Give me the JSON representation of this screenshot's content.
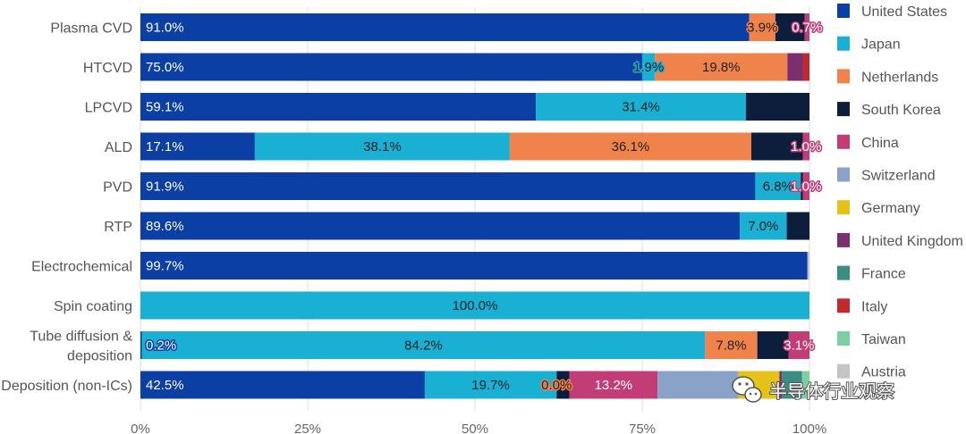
{
  "chart_data": {
    "type": "bar",
    "orientation": "horizontal",
    "stacked": true,
    "categories": [
      "Plasma CVD",
      "HTCVD",
      "LPCVD",
      "ALD",
      "PVD",
      "RTP",
      "Electrochemical",
      "Spin coating",
      "Tube diffusion & deposition",
      "Deposition (non-ICs)"
    ],
    "category_lines": [
      [
        "Plasma CVD"
      ],
      [
        "HTCVD"
      ],
      [
        "LPCVD"
      ],
      [
        "ALD"
      ],
      [
        "PVD"
      ],
      [
        "RTP"
      ],
      [
        "Electrochemical"
      ],
      [
        "Spin coating"
      ],
      [
        "Tube diffusion &",
        "deposition"
      ],
      [
        "Deposition (non-ICs)"
      ]
    ],
    "series": [
      {
        "name": "United States",
        "color": "#0b3fa3",
        "values": [
          91.0,
          75.0,
          59.1,
          17.1,
          91.9,
          89.6,
          99.7,
          0.0,
          0.2,
          42.5
        ]
      },
      {
        "name": "Japan",
        "color": "#19b0d3",
        "values": [
          0.0,
          1.9,
          31.4,
          38.1,
          6.8,
          7.0,
          0.0,
          100.0,
          84.2,
          19.7
        ]
      },
      {
        "name": "Netherlands",
        "color": "#f0824c",
        "values": [
          3.9,
          19.8,
          0.0,
          36.1,
          0.0,
          0.0,
          0.0,
          0.0,
          7.8,
          0.0
        ]
      },
      {
        "name": "South Korea",
        "color": "#0d1e3c",
        "values": [
          4.4,
          0.0,
          9.5,
          7.7,
          0.3,
          3.4,
          0.0,
          0.0,
          4.7,
          1.9
        ]
      },
      {
        "name": "China",
        "color": "#c23d76",
        "values": [
          0.7,
          0.0,
          0.0,
          1.0,
          1.0,
          0.0,
          0.0,
          0.0,
          3.1,
          13.2
        ]
      },
      {
        "name": "Switzerland",
        "color": "#8ba2c8",
        "values": [
          0.0,
          0.0,
          0.0,
          0.0,
          0.0,
          0.0,
          0.0,
          0.0,
          0.0,
          12.1
        ]
      },
      {
        "name": "Germany",
        "color": "#e6c218",
        "values": [
          0.0,
          0.0,
          0.0,
          0.0,
          0.0,
          0.0,
          0.0,
          0.0,
          0.0,
          6.1
        ]
      },
      {
        "name": "United Kingdom",
        "color": "#7b2f6f",
        "values": [
          0.0,
          2.3,
          0.0,
          0.0,
          0.0,
          0.0,
          0.0,
          0.0,
          0.0,
          0.4
        ]
      },
      {
        "name": "France",
        "color": "#3b8d83",
        "values": [
          0.0,
          0.0,
          0.0,
          0.0,
          0.0,
          0.0,
          0.0,
          0.0,
          0.0,
          3.0
        ]
      },
      {
        "name": "Italy",
        "color": "#c12a2c",
        "values": [
          0.0,
          1.0,
          0.0,
          0.0,
          0.0,
          0.0,
          0.0,
          0.0,
          0.0,
          0.0
        ]
      },
      {
        "name": "Taiwan",
        "color": "#7fcfa5",
        "values": [
          0.0,
          0.0,
          0.0,
          0.0,
          0.0,
          0.0,
          0.0,
          0.0,
          0.0,
          1.1
        ]
      },
      {
        "name": "Austria",
        "color": "#c4c4c4",
        "values": [
          0.0,
          0.0,
          0.0,
          0.0,
          0.0,
          0.0,
          0.3,
          0.0,
          0.0,
          0.0
        ]
      }
    ],
    "data_labels": [
      {
        "category": 0,
        "series": "United States",
        "text": "91.0%"
      },
      {
        "category": 0,
        "series": "Netherlands",
        "text": "3.9%"
      },
      {
        "category": 0,
        "series": "China",
        "text": "0.7%"
      },
      {
        "category": 1,
        "series": "United States",
        "text": "75.0%"
      },
      {
        "category": 1,
        "series": "Japan",
        "text": "1.9%"
      },
      {
        "category": 1,
        "series": "Netherlands",
        "text": "19.8%"
      },
      {
        "category": 2,
        "series": "United States",
        "text": "59.1%"
      },
      {
        "category": 2,
        "series": "Japan",
        "text": "31.4%"
      },
      {
        "category": 3,
        "series": "United States",
        "text": "17.1%"
      },
      {
        "category": 3,
        "series": "Japan",
        "text": "38.1%"
      },
      {
        "category": 3,
        "series": "Netherlands",
        "text": "36.1%"
      },
      {
        "category": 3,
        "series": "China",
        "text": "1.0%"
      },
      {
        "category": 4,
        "series": "United States",
        "text": "91.9%"
      },
      {
        "category": 4,
        "series": "Japan",
        "text": "6.8%"
      },
      {
        "category": 4,
        "series": "China",
        "text": "1.0%"
      },
      {
        "category": 5,
        "series": "United States",
        "text": "89.6%"
      },
      {
        "category": 5,
        "series": "Japan",
        "text": "7.0%"
      },
      {
        "category": 6,
        "series": "United States",
        "text": "99.7%"
      },
      {
        "category": 7,
        "series": "Japan",
        "text": "100.0%"
      },
      {
        "category": 8,
        "series": "United States",
        "text": "0.2%"
      },
      {
        "category": 8,
        "series": "Japan",
        "text": "84.2%"
      },
      {
        "category": 8,
        "series": "Netherlands",
        "text": "7.8%"
      },
      {
        "category": 8,
        "series": "China",
        "text": "3.1%"
      },
      {
        "category": 9,
        "series": "United States",
        "text": "42.5%"
      },
      {
        "category": 9,
        "series": "Japan",
        "text": "19.7%"
      },
      {
        "category": 9,
        "series": "Netherlands",
        "text": "0.0%"
      },
      {
        "category": 9,
        "series": "China",
        "text": "13.2%"
      }
    ],
    "xlim": [
      0,
      100
    ],
    "xticks": [
      "0%",
      "25%",
      "50%",
      "75%",
      "100%"
    ],
    "grid": true,
    "legend": "right",
    "title": "",
    "xlabel": "",
    "ylabel": ""
  },
  "watermark": {
    "text": "半导体行业观察",
    "icon": "wechat-icon"
  }
}
